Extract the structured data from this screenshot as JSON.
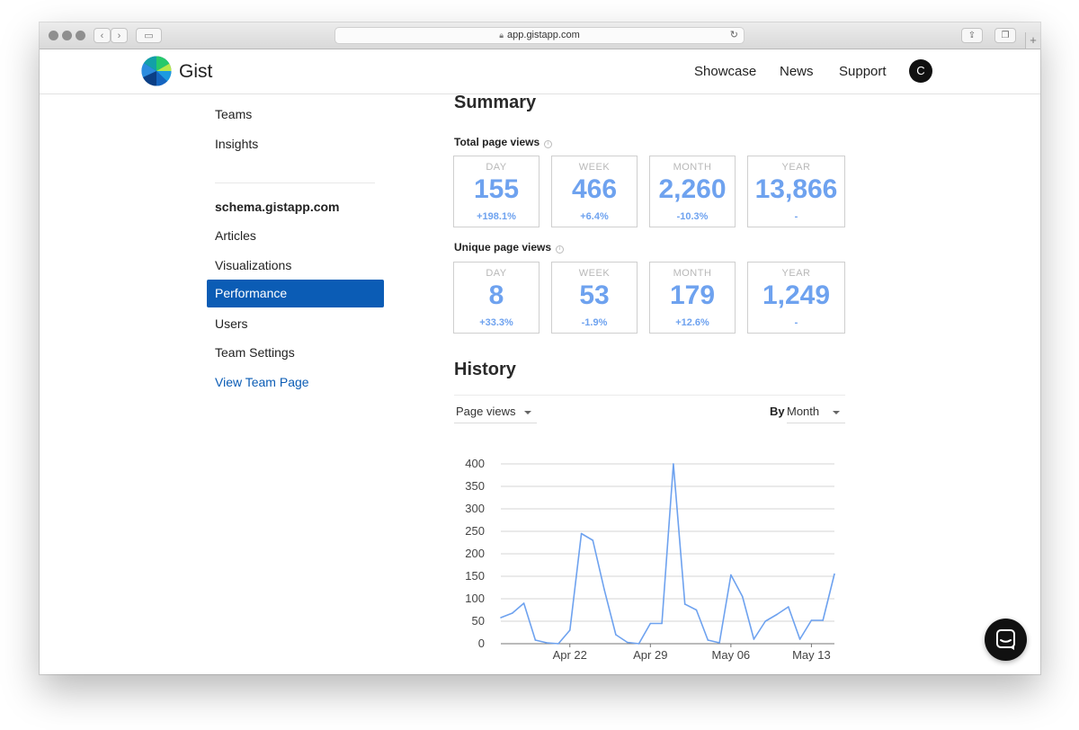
{
  "browser": {
    "url": "app.gistapp.com"
  },
  "header": {
    "brand": "Gist",
    "nav": [
      "Showcase",
      "News",
      "Support"
    ],
    "avatar_initial": "C"
  },
  "sidebar": {
    "top_items": [
      "Teams",
      "Insights"
    ],
    "site_heading": "schema.gistapp.com",
    "items": [
      "Articles",
      "Visualizations",
      "Performance",
      "Users",
      "Team Settings"
    ],
    "active_item": "Performance",
    "link": "View Team Page"
  },
  "summary": {
    "title": "Summary",
    "total": {
      "label": "Total page views",
      "cards": [
        {
          "label": "DAY",
          "value": "155",
          "change": "+198.1%"
        },
        {
          "label": "WEEK",
          "value": "466",
          "change": "+6.4%"
        },
        {
          "label": "MONTH",
          "value": "2,260",
          "change": "-10.3%"
        },
        {
          "label": "YEAR",
          "value": "13,866",
          "change": "-"
        }
      ]
    },
    "unique": {
      "label": "Unique page views",
      "cards": [
        {
          "label": "DAY",
          "value": "8",
          "change": "+33.3%"
        },
        {
          "label": "WEEK",
          "value": "53",
          "change": "-1.9%"
        },
        {
          "label": "MONTH",
          "value": "179",
          "change": "+12.6%"
        },
        {
          "label": "YEAR",
          "value": "1,249",
          "change": "-"
        }
      ]
    }
  },
  "history": {
    "title": "History",
    "metric_select": "Page views",
    "by_label": "By",
    "period_select": "Month"
  },
  "chart_data": {
    "type": "line",
    "title": "",
    "xlabel": "",
    "ylabel": "",
    "ylim": [
      0,
      400
    ],
    "yticks": [
      0,
      50,
      100,
      150,
      200,
      250,
      300,
      350,
      400
    ],
    "x_tick_labels": [
      {
        "label": "Apr 22",
        "index": 6
      },
      {
        "label": "Apr 29",
        "index": 13
      },
      {
        "label": "May 06",
        "index": 20
      },
      {
        "label": "May 13",
        "index": 27
      }
    ],
    "grid": true,
    "color": "#6ea2ef",
    "values": [
      58,
      68,
      90,
      8,
      2,
      0,
      30,
      245,
      230,
      120,
      20,
      3,
      0,
      45,
      45,
      400,
      88,
      75,
      8,
      2,
      153,
      105,
      10,
      50,
      65,
      82,
      10,
      52,
      52,
      155
    ]
  },
  "icons": {
    "chat": "chat-bubble-icon",
    "logo": "gist-pie-logo-icon"
  }
}
